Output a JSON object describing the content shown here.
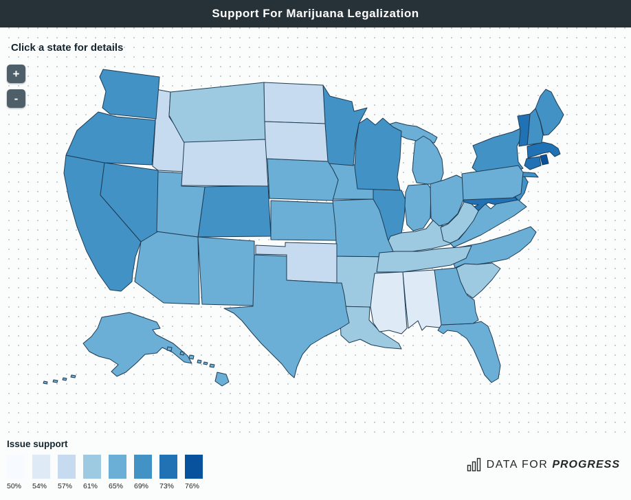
{
  "header": {
    "title": "Support For Marijuana Legalization"
  },
  "map": {
    "hint": "Click a state for details"
  },
  "controls": {
    "zoom_in": "+",
    "zoom_out": "-"
  },
  "legend": {
    "title": "Issue support"
  },
  "footer": {
    "brand_prefix": "DATA FOR",
    "brand_suffix": "PROGRESS",
    "icon": "bar-chart-icon"
  },
  "theme": {
    "header_bg": "#263238",
    "state_border": "#1d3b53",
    "button_bg": "#4f5f69",
    "dot_grid": "#c9ced2"
  },
  "chart_data": {
    "type": "heatmap",
    "subtype": "us_state_choropleth",
    "title": "Support For Marijuana Legalization",
    "legend": {
      "label": "Issue support",
      "breaks_pct": [
        50,
        54,
        57,
        61,
        65,
        69,
        73,
        76
      ],
      "colors": [
        "#f7fbff",
        "#deebf7",
        "#c6dbef",
        "#9ecae1",
        "#6baed6",
        "#4292c6",
        "#2171b5",
        "#08519c"
      ]
    },
    "states": [
      {
        "code": "AL",
        "name": "Alabama",
        "support_pct": 54
      },
      {
        "code": "AK",
        "name": "Alaska",
        "support_pct": 65
      },
      {
        "code": "AZ",
        "name": "Arizona",
        "support_pct": 65
      },
      {
        "code": "AR",
        "name": "Arkansas",
        "support_pct": 61
      },
      {
        "code": "CA",
        "name": "California",
        "support_pct": 69
      },
      {
        "code": "CO",
        "name": "Colorado",
        "support_pct": 69
      },
      {
        "code": "CT",
        "name": "Connecticut",
        "support_pct": 73
      },
      {
        "code": "DE",
        "name": "Delaware",
        "support_pct": 69
      },
      {
        "code": "FL",
        "name": "Florida",
        "support_pct": 65
      },
      {
        "code": "GA",
        "name": "Georgia",
        "support_pct": 65
      },
      {
        "code": "HI",
        "name": "Hawaii",
        "support_pct": 65
      },
      {
        "code": "ID",
        "name": "Idaho",
        "support_pct": 57
      },
      {
        "code": "IL",
        "name": "Illinois",
        "support_pct": 69
      },
      {
        "code": "IN",
        "name": "Indiana",
        "support_pct": 65
      },
      {
        "code": "IA",
        "name": "Iowa",
        "support_pct": 65
      },
      {
        "code": "KS",
        "name": "Kansas",
        "support_pct": 65
      },
      {
        "code": "KY",
        "name": "Kentucky",
        "support_pct": 61
      },
      {
        "code": "LA",
        "name": "Louisiana",
        "support_pct": 61
      },
      {
        "code": "ME",
        "name": "Maine",
        "support_pct": 69
      },
      {
        "code": "MD",
        "name": "Maryland",
        "support_pct": 73
      },
      {
        "code": "MA",
        "name": "Massachusetts",
        "support_pct": 73
      },
      {
        "code": "MI",
        "name": "Michigan",
        "support_pct": 65
      },
      {
        "code": "MN",
        "name": "Minnesota",
        "support_pct": 69
      },
      {
        "code": "MS",
        "name": "Mississippi",
        "support_pct": 54
      },
      {
        "code": "MO",
        "name": "Missouri",
        "support_pct": 65
      },
      {
        "code": "MT",
        "name": "Montana",
        "support_pct": 61
      },
      {
        "code": "NE",
        "name": "Nebraska",
        "support_pct": 65
      },
      {
        "code": "NV",
        "name": "Nevada",
        "support_pct": 69
      },
      {
        "code": "NH",
        "name": "New Hampshire",
        "support_pct": 69
      },
      {
        "code": "NJ",
        "name": "New Jersey",
        "support_pct": 69
      },
      {
        "code": "NM",
        "name": "New Mexico",
        "support_pct": 65
      },
      {
        "code": "NY",
        "name": "New York",
        "support_pct": 69
      },
      {
        "code": "NC",
        "name": "North Carolina",
        "support_pct": 65
      },
      {
        "code": "ND",
        "name": "North Dakota",
        "support_pct": 57
      },
      {
        "code": "OH",
        "name": "Ohio",
        "support_pct": 65
      },
      {
        "code": "OK",
        "name": "Oklahoma",
        "support_pct": 57
      },
      {
        "code": "OR",
        "name": "Oregon",
        "support_pct": 69
      },
      {
        "code": "PA",
        "name": "Pennsylvania",
        "support_pct": 65
      },
      {
        "code": "RI",
        "name": "Rhode Island",
        "support_pct": 76
      },
      {
        "code": "SC",
        "name": "South Carolina",
        "support_pct": 61
      },
      {
        "code": "SD",
        "name": "South Dakota",
        "support_pct": 57
      },
      {
        "code": "TN",
        "name": "Tennessee",
        "support_pct": 61
      },
      {
        "code": "TX",
        "name": "Texas",
        "support_pct": 65
      },
      {
        "code": "UT",
        "name": "Utah",
        "support_pct": 65
      },
      {
        "code": "VT",
        "name": "Vermont",
        "support_pct": 73
      },
      {
        "code": "VA",
        "name": "Virginia",
        "support_pct": 65
      },
      {
        "code": "WA",
        "name": "Washington",
        "support_pct": 69
      },
      {
        "code": "WV",
        "name": "West Virginia",
        "support_pct": 61
      },
      {
        "code": "WI",
        "name": "Wisconsin",
        "support_pct": 69
      },
      {
        "code": "WY",
        "name": "Wyoming",
        "support_pct": 57
      }
    ]
  }
}
